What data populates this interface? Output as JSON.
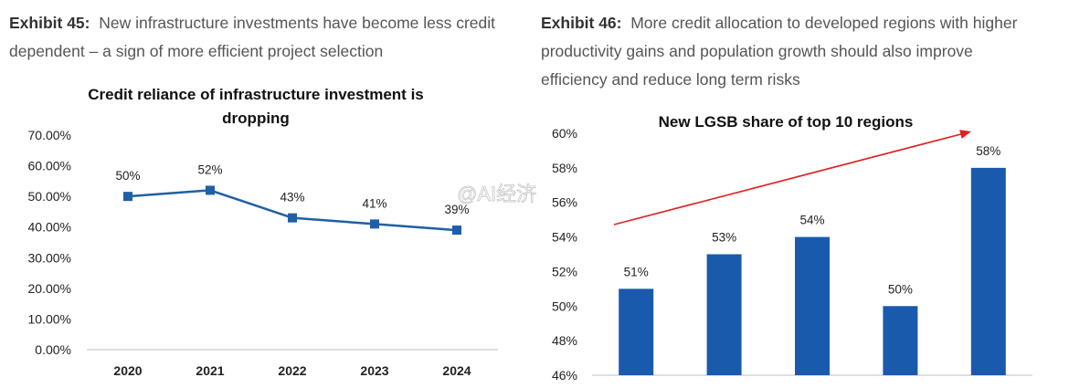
{
  "exhibit45": {
    "label": "Exhibit 45:",
    "text": "New infrastructure investments have become less credit dependent – a sign of more efficient project selection"
  },
  "exhibit46": {
    "label": "Exhibit 46:",
    "text": "More credit allocation to developed regions with higher productivity gains and population growth should also improve efficiency and reduce long term risks"
  },
  "watermark": "@AI经济",
  "colors": {
    "series": "#1f5fa8",
    "bar": "#1a5aad",
    "arrow": "#e02020",
    "axis": "#bfbfbf"
  },
  "chart_data": [
    {
      "type": "line",
      "title_line1": "Credit reliance of infrastructure investment is",
      "title_line2": "dropping",
      "categories": [
        "2020",
        "2021",
        "2022",
        "2023",
        "2024"
      ],
      "values": [
        50,
        52,
        43,
        41,
        39
      ],
      "data_labels": [
        "50%",
        "52%",
        "43%",
        "41%",
        "39%"
      ],
      "yticks": [
        "0.00%",
        "10.00%",
        "20.00%",
        "30.00%",
        "40.00%",
        "50.00%",
        "60.00%",
        "70.00%"
      ],
      "ylim": [
        0,
        70
      ],
      "xlabel": "",
      "ylabel": ""
    },
    {
      "type": "bar",
      "title": "New LGSB share of top 10 regions",
      "categories": [
        "",
        "",
        "",
        "",
        ""
      ],
      "values": [
        51,
        53,
        54,
        50,
        58
      ],
      "data_labels": [
        "51%",
        "53%",
        "54%",
        "50%",
        "58%"
      ],
      "yticks": [
        "46%",
        "48%",
        "50%",
        "52%",
        "54%",
        "56%",
        "58%",
        "60%"
      ],
      "ylim": [
        46,
        60
      ],
      "annotation": "red upward trend arrow"
    }
  ]
}
